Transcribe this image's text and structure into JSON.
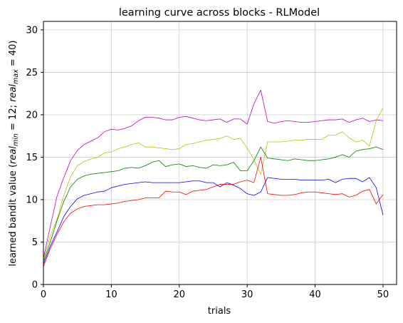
{
  "chart_data": {
    "type": "line",
    "title": "learning curve across blocks - RLModel",
    "xlabel": "trials",
    "ylabel": "learned bandit value (real_min = 12; real_max = 40)",
    "ylabel_parts": {
      "prefix": "learned bandit value (",
      "var1": "real",
      "sub1": "min",
      "mid": " = 12; ",
      "var2": "real",
      "sub2": "max",
      "suffix": " = 40)"
    },
    "xlim": [
      0,
      52
    ],
    "ylim": [
      0,
      31
    ],
    "xticks": [
      0,
      10,
      20,
      30,
      40,
      50
    ],
    "yticks": [
      0,
      5,
      10,
      15,
      20,
      25,
      30
    ],
    "grid": true,
    "x": [
      0,
      1,
      2,
      3,
      4,
      5,
      6,
      7,
      8,
      9,
      10,
      11,
      12,
      13,
      14,
      15,
      16,
      17,
      18,
      19,
      20,
      21,
      22,
      23,
      24,
      25,
      26,
      27,
      28,
      29,
      30,
      31,
      32,
      33,
      34,
      35,
      36,
      37,
      38,
      39,
      40,
      41,
      42,
      43,
      44,
      45,
      46,
      47,
      48,
      49,
      50
    ],
    "series": [
      {
        "color": "#bf00bf",
        "values": [
          3.1,
          6.8,
          10.4,
          12.6,
          14.6,
          15.8,
          16.5,
          16.9,
          17.3,
          18.0,
          18.3,
          18.2,
          18.4,
          18.7,
          19.3,
          19.7,
          19.7,
          19.6,
          19.4,
          19.4,
          19.7,
          19.8,
          19.6,
          19.4,
          19.3,
          19.4,
          19.5,
          19.1,
          19.5,
          19.5,
          18.9,
          21.3,
          22.9,
          19.2,
          19.0,
          19.2,
          19.3,
          19.2,
          19.1,
          19.1,
          19.2,
          19.3,
          19.4,
          19.4,
          19.5,
          19.1,
          19.4,
          19.6,
          19.2,
          19.4,
          19.3
        ]
      },
      {
        "color": "#bfbf00",
        "values": [
          2.9,
          5.7,
          7.7,
          10.5,
          12.7,
          14.0,
          14.5,
          14.8,
          15.0,
          15.5,
          15.6,
          16.0,
          16.2,
          16.5,
          16.7,
          16.2,
          16.2,
          16.1,
          16.0,
          15.9,
          16.0,
          16.5,
          16.6,
          16.8,
          17.0,
          17.1,
          17.2,
          17.5,
          17.1,
          17.2,
          16.1,
          14.7,
          13.0,
          16.8,
          16.8,
          16.8,
          16.9,
          17.0,
          17.0,
          17.1,
          17.1,
          17.1,
          17.6,
          17.6,
          18.0,
          17.3,
          16.8,
          17.0,
          16.3,
          19.3,
          20.8
        ]
      },
      {
        "color": "#008000",
        "values": [
          2.7,
          5.0,
          7.5,
          9.8,
          11.5,
          12.4,
          12.8,
          13.0,
          13.1,
          13.2,
          13.3,
          13.4,
          13.7,
          13.8,
          13.7,
          14.0,
          14.4,
          14.6,
          13.9,
          14.1,
          14.2,
          13.9,
          14.0,
          13.8,
          13.7,
          14.1,
          14.0,
          14.1,
          14.4,
          13.4,
          13.4,
          14.6,
          16.2,
          14.9,
          14.8,
          14.7,
          14.6,
          14.8,
          14.7,
          14.6,
          14.6,
          14.7,
          14.8,
          15.0,
          15.3,
          15.0,
          15.7,
          15.9,
          16.0,
          16.2,
          15.9
        ]
      },
      {
        "color": "#0000ff",
        "values": [
          2.4,
          4.5,
          6.2,
          8.0,
          9.2,
          10.1,
          10.5,
          10.7,
          10.9,
          11.0,
          11.4,
          11.6,
          11.8,
          11.9,
          12.0,
          12.1,
          12.0,
          12.0,
          12.0,
          12.0,
          12.0,
          12.1,
          12.2,
          12.2,
          12.0,
          12.0,
          11.5,
          12.0,
          11.7,
          11.3,
          10.7,
          10.5,
          10.9,
          12.6,
          12.5,
          12.4,
          12.4,
          12.4,
          12.3,
          12.3,
          12.3,
          12.3,
          12.4,
          12.0,
          12.4,
          12.5,
          12.5,
          12.1,
          12.6,
          11.4,
          8.2
        ]
      },
      {
        "color": "#ff0000",
        "values": [
          2.1,
          4.2,
          5.9,
          7.4,
          8.4,
          8.9,
          9.2,
          9.3,
          9.4,
          9.4,
          9.5,
          9.6,
          9.8,
          9.9,
          10.0,
          10.2,
          10.2,
          10.2,
          11.0,
          10.9,
          10.9,
          10.6,
          11.0,
          11.1,
          11.2,
          11.5,
          11.8,
          11.8,
          11.8,
          12.1,
          12.3,
          12.0,
          15.0,
          10.7,
          10.6,
          10.5,
          10.5,
          10.6,
          10.8,
          10.9,
          10.9,
          10.8,
          10.7,
          10.6,
          10.7,
          10.3,
          10.5,
          11.0,
          11.2,
          9.5,
          10.6
        ]
      }
    ]
  }
}
